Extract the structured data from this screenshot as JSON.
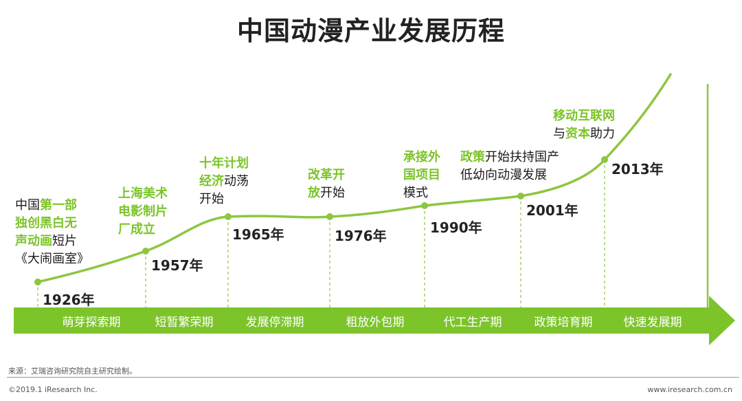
{
  "title": "中国动漫产业发展历程",
  "colors": {
    "accent": "#7cc42a",
    "arrow": "#7cc42a",
    "text": "#1a1a1a"
  },
  "events": [
    {
      "year": "1926年",
      "lines": [
        [
          [
            "中国",
            "k"
          ],
          [
            "第一部",
            "g"
          ]
        ],
        [
          [
            "独创黑白无",
            "g"
          ]
        ],
        [
          [
            "声动画",
            "g"
          ],
          [
            "短片",
            "k"
          ]
        ],
        [
          [
            "《大闹画室》",
            "k"
          ]
        ]
      ]
    },
    {
      "year": "1957年",
      "lines": [
        [
          [
            "上海美术",
            "g"
          ]
        ],
        [
          [
            "电影制片",
            "g"
          ]
        ],
        [
          [
            "厂成立",
            "g"
          ]
        ]
      ]
    },
    {
      "year": "1965年",
      "lines": [
        [
          [
            "十年计划",
            "g"
          ]
        ],
        [
          [
            "经济",
            "g"
          ],
          [
            "动荡",
            "k"
          ]
        ],
        [
          [
            "开始",
            "k"
          ]
        ]
      ]
    },
    {
      "year": "1976年",
      "lines": [
        [
          [
            "改革开",
            "g"
          ]
        ],
        [
          [
            "放",
            "g"
          ],
          [
            "开始",
            "k"
          ]
        ]
      ]
    },
    {
      "year": "1990年",
      "lines": [
        [
          [
            "承接外",
            "g"
          ]
        ],
        [
          [
            "国项目",
            "g"
          ]
        ],
        [
          [
            "模式",
            "k"
          ]
        ]
      ]
    },
    {
      "year": "2001年",
      "lines": [
        [
          [
            "政策",
            "g"
          ],
          [
            "开始扶持国产",
            "k"
          ]
        ],
        [
          [
            "低幼向动漫发展",
            "k"
          ]
        ]
      ]
    },
    {
      "year": "2013年",
      "lines": [
        [
          [
            "移动互联网",
            "g"
          ]
        ],
        [
          [
            "与",
            "k"
          ],
          [
            "资本",
            "g"
          ],
          [
            "助力",
            "k"
          ]
        ]
      ]
    }
  ],
  "phases": [
    "萌芽探索期",
    "短暂繁荣期",
    "发展停滞期",
    "粗放外包期",
    "代工生产期",
    "政策培育期",
    "快速发展期"
  ],
  "footer": {
    "source": "来源：艾瑞咨询研究院自主研究绘制。",
    "copyright": "©2019.1 iResearch Inc.",
    "site": "www.iresearch.com.cn"
  }
}
